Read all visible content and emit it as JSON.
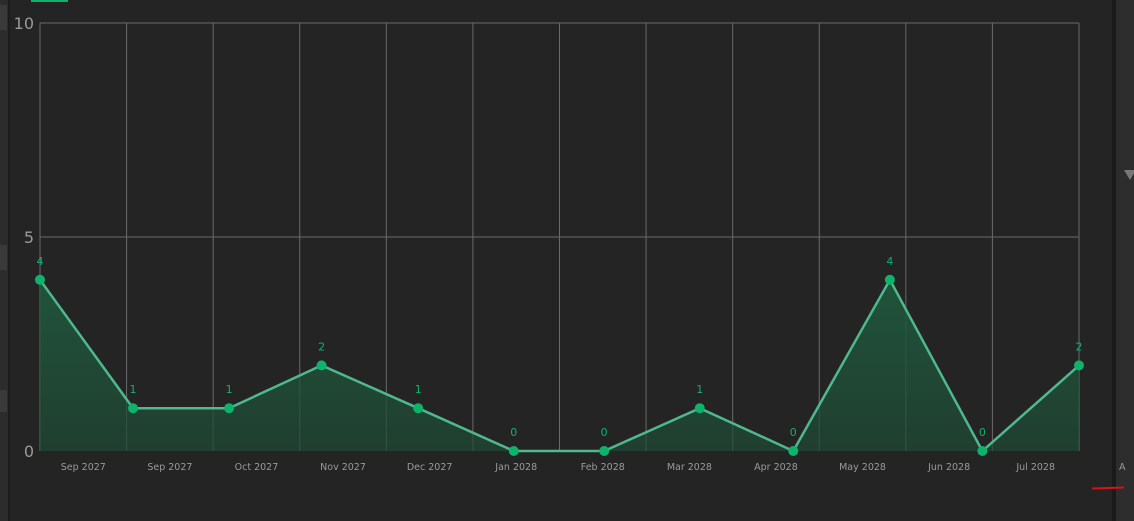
{
  "chart_data": {
    "type": "line",
    "title": "",
    "xlabel": "",
    "ylabel": "",
    "ylim": [
      0,
      10
    ],
    "yticks": [
      "0",
      "5",
      "10"
    ],
    "xtick_labels": [
      "Sep 2027",
      "Sep 2027",
      "Oct 2027",
      "Nov 2027",
      "Dec 2027",
      "Jan 2028",
      "Feb 2028",
      "Mar 2028",
      "Apr 2028",
      "May 2028",
      "Jun 2028",
      "Jul 2028",
      "A"
    ],
    "series": [
      {
        "values": [
          4,
          1,
          1,
          2,
          1,
          0,
          0,
          1,
          0,
          4,
          0,
          2
        ],
        "data_labels": [
          "4",
          "1",
          "1",
          "2",
          "1",
          "0",
          "0",
          "1",
          "0",
          "4",
          "0",
          "2"
        ]
      }
    ],
    "grid": true,
    "area_fill": true,
    "colors": {
      "line": "#4fb88f",
      "point": "#0fb26a",
      "label": "#0fb26a",
      "fill": "#1f4a35",
      "grid": "#6a6a6a",
      "tick": "#9a9a9a"
    }
  }
}
